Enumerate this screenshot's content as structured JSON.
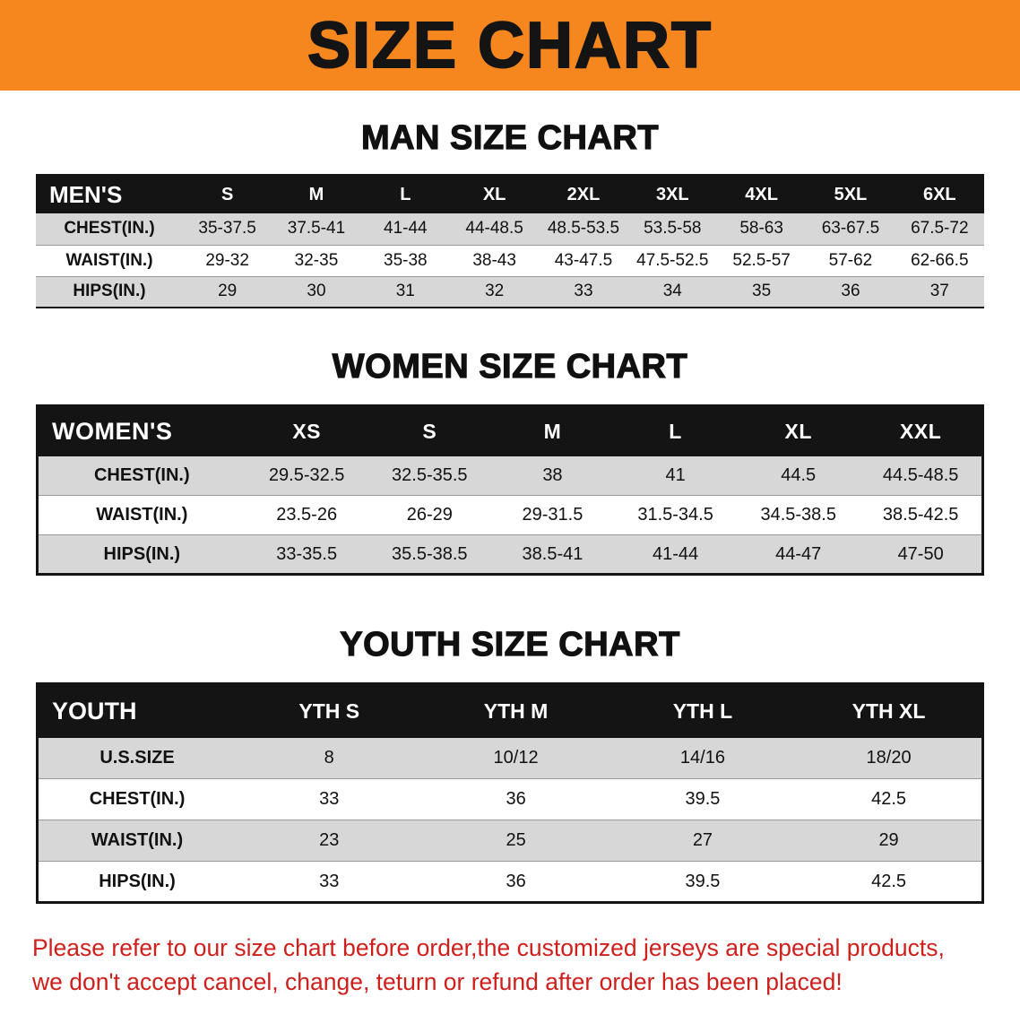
{
  "banner": {
    "title": "SIZE CHART"
  },
  "colors": {
    "banner_bg": "#f6871f",
    "table_header_bg": "#141414",
    "row_stripe": "#d7d7d7",
    "note_text": "#cf1f1c"
  },
  "sections": [
    {
      "heading": "MAN SIZE CHART",
      "table": {
        "header": [
          "MEN'S",
          "S",
          "M",
          "L",
          "XL",
          "2XL",
          "3XL",
          "4XL",
          "5XL",
          "6XL"
        ],
        "rows": [
          [
            "CHEST(IN.)",
            "35-37.5",
            "37.5-41",
            "41-44",
            "44-48.5",
            "48.5-53.5",
            "53.5-58",
            "58-63",
            "63-67.5",
            "67.5-72"
          ],
          [
            "WAIST(IN.)",
            "29-32",
            "32-35",
            "35-38",
            "38-43",
            "43-47.5",
            "47.5-52.5",
            "52.5-57",
            "57-62",
            "62-66.5"
          ],
          [
            "HIPS(IN.)",
            "29",
            "30",
            "31",
            "32",
            "33",
            "34",
            "35",
            "36",
            "37"
          ]
        ]
      }
    },
    {
      "heading": "WOMEN SIZE CHART",
      "table": {
        "header": [
          "WOMEN'S",
          "XS",
          "S",
          "M",
          "L",
          "XL",
          "XXL"
        ],
        "rows": [
          [
            "CHEST(IN.)",
            "29.5-32.5",
            "32.5-35.5",
            "38",
            "41",
            "44.5",
            "44.5-48.5"
          ],
          [
            "WAIST(IN.)",
            "23.5-26",
            "26-29",
            "29-31.5",
            "31.5-34.5",
            "34.5-38.5",
            "38.5-42.5"
          ],
          [
            "HIPS(IN.)",
            "33-35.5",
            "35.5-38.5",
            "38.5-41",
            "41-44",
            "44-47",
            "47-50"
          ]
        ]
      }
    },
    {
      "heading": "YOUTH SIZE CHART",
      "table": {
        "header": [
          "YOUTH",
          "YTH S",
          "YTH M",
          "YTH L",
          "YTH XL"
        ],
        "rows": [
          [
            "U.S.SIZE",
            "8",
            "10/12",
            "14/16",
            "18/20"
          ],
          [
            "CHEST(IN.)",
            "33",
            "36",
            "39.5",
            "42.5"
          ],
          [
            "WAIST(IN.)",
            "23",
            "25",
            "27",
            "29"
          ],
          [
            "HIPS(IN.)",
            "33",
            "36",
            "39.5",
            "42.5"
          ]
        ]
      }
    }
  ],
  "note": {
    "lines": [
      "Please refer to our size chart before order,the customized jerseys are special products,",
      "we don't accept cancel, change, teturn or refund after order has been placed!"
    ]
  }
}
